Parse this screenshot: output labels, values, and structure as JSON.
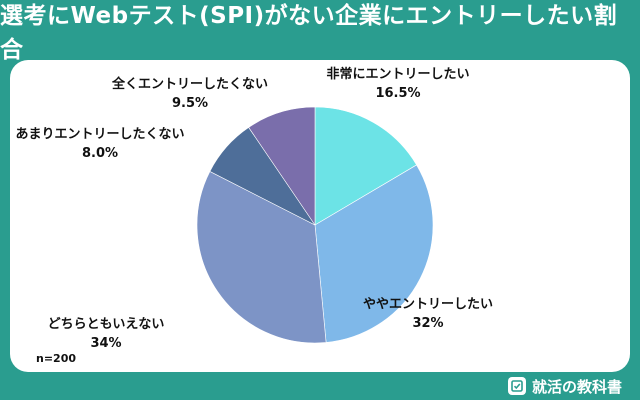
{
  "chart_data": {
    "type": "pie",
    "title": "選考にWebテスト(SPI)がない企業にエントリーしたい割合",
    "sample_size": "n=200",
    "slices": [
      {
        "label": "非常にエントリーしたい",
        "value": 16.5,
        "value_label": "16.5%",
        "color": "#6ce3e6"
      },
      {
        "label": "ややエントリーしたい",
        "value": 32,
        "value_label": "32%",
        "color": "#7fb8e9"
      },
      {
        "label": "どちらともいえない",
        "value": 34,
        "value_label": "34%",
        "color": "#7d94c6"
      },
      {
        "label": "あまりエントリーしたくない",
        "value": 8.0,
        "value_label": "8.0%",
        "color": "#4e6e99"
      },
      {
        "label": "全くエントリーしたくない",
        "value": 9.5,
        "value_label": "9.5%",
        "color": "#7a6eab"
      }
    ]
  },
  "footer": {
    "brand": "就活の教科書",
    "logo_icon": "check-book-icon"
  }
}
